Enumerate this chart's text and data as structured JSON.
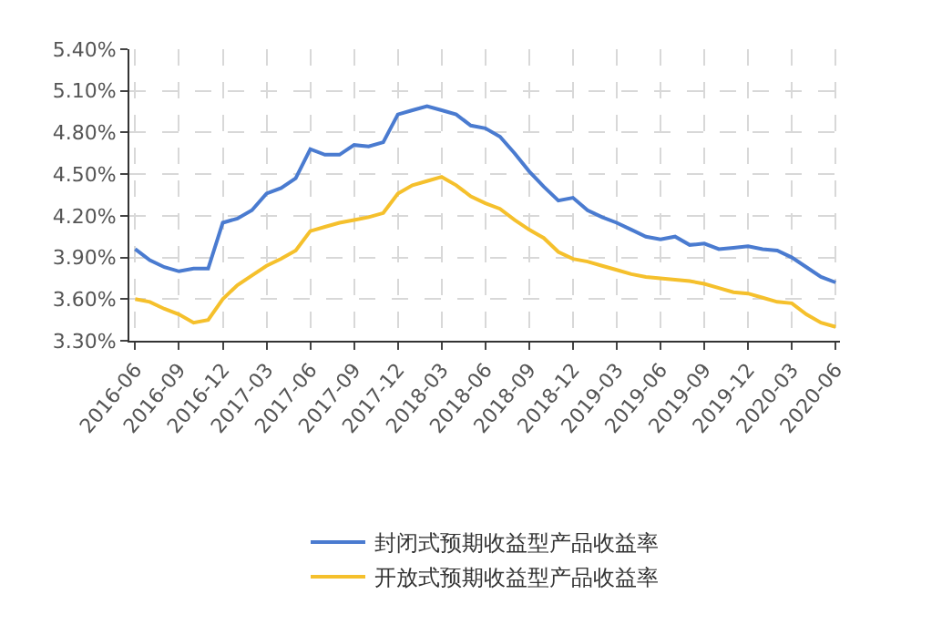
{
  "chart_data": {
    "type": "line",
    "categories": [
      "2016-06",
      null,
      null,
      "2016-09",
      null,
      null,
      "2016-12",
      null,
      null,
      "2017-03",
      null,
      null,
      "2017-06",
      null,
      null,
      "2017-09",
      null,
      null,
      "2017-12",
      null,
      null,
      "2018-03",
      null,
      null,
      "2018-06",
      null,
      null,
      "2018-09",
      null,
      null,
      "2018-12",
      null,
      null,
      "2019-03",
      null,
      null,
      "2019-06",
      null,
      null,
      "2019-09",
      null,
      null,
      "2019-12",
      null,
      null,
      "2020-03",
      null,
      null,
      "2020-06"
    ],
    "series": [
      {
        "name": "封闭式预期收益型产品收益率",
        "color": "#4a7bd0",
        "values": [
          3.96,
          3.88,
          3.83,
          3.8,
          3.82,
          3.82,
          4.15,
          4.18,
          4.24,
          4.36,
          4.4,
          4.47,
          4.68,
          4.64,
          4.64,
          4.71,
          4.7,
          4.73,
          4.93,
          4.96,
          4.99,
          4.96,
          4.93,
          4.85,
          4.83,
          4.77,
          4.65,
          4.52,
          4.41,
          4.31,
          4.33,
          4.24,
          4.19,
          4.15,
          4.1,
          4.05,
          4.03,
          4.05,
          3.99,
          4.0,
          3.96,
          3.97,
          3.98,
          3.96,
          3.95,
          3.9,
          3.83,
          3.76,
          3.72
        ]
      },
      {
        "name": "开放式预期收益型产品收益率",
        "color": "#f5c02c",
        "values": [
          3.6,
          3.58,
          3.53,
          3.49,
          3.43,
          3.45,
          3.6,
          3.7,
          3.77,
          3.84,
          3.89,
          3.95,
          4.09,
          4.12,
          4.15,
          4.17,
          4.19,
          4.22,
          4.36,
          4.42,
          4.45,
          4.48,
          4.42,
          4.34,
          4.29,
          4.25,
          4.17,
          4.1,
          4.04,
          3.94,
          3.89,
          3.87,
          3.84,
          3.81,
          3.78,
          3.76,
          3.75,
          3.74,
          3.73,
          3.71,
          3.68,
          3.65,
          3.64,
          3.61,
          3.58,
          3.57,
          3.49,
          3.43,
          3.4
        ]
      }
    ],
    "ylim": [
      3.3,
      5.4
    ],
    "yticks": [
      {
        "value": 3.3,
        "label": "3.30%"
      },
      {
        "value": 3.6,
        "label": "3.60%"
      },
      {
        "value": 3.9,
        "label": "3.90%"
      },
      {
        "value": 4.2,
        "label": "4.20%"
      },
      {
        "value": 4.5,
        "label": "4.50%"
      },
      {
        "value": 4.8,
        "label": "4.80%"
      },
      {
        "value": 5.1,
        "label": "5.10%"
      },
      {
        "value": 5.4,
        "label": "5.40%"
      }
    ],
    "grid": true,
    "legend": "bottom",
    "marker": "none",
    "line_style": "solid"
  }
}
